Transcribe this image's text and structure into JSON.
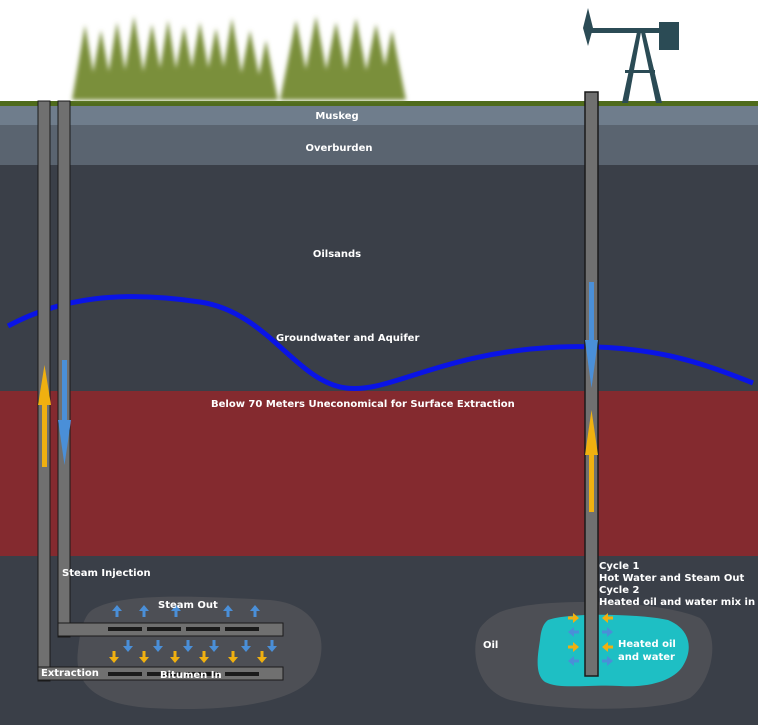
{
  "labels": {
    "muskeg": "Muskeg",
    "overburden": "Overburden",
    "oilsands": "Oilsands",
    "groundwater": "Groundwater and Aquifer",
    "below70": "Below 70 Meters Uneconomical for Surface Extraction",
    "steam_injection": "Steam Injection",
    "steam_out": "Steam Out",
    "extraction": "Extraction",
    "bitumen_in": "Bitumen In",
    "oil": "Oil",
    "heated_oil_line1": "Heated oil",
    "heated_oil_line2": "and water",
    "cycle1": "Cycle 1",
    "cycle1_desc": "Hot Water and Steam Out",
    "cycle2": "Cycle 2",
    "cycle2_desc": "Heated oil and water mix in"
  },
  "colors": {
    "sky": "#ffffff",
    "grass": "#4f6b1c",
    "muskeg": "#6f7d8c",
    "overburden": "#5a6470",
    "oilsands": "#3a3f48",
    "extraction_zone": "#842a2f",
    "deep_layer": "#3a3f48",
    "pocket": "#4d4f55",
    "pipe": "#707070",
    "pipe_edge": "#1a1a1a",
    "aquifer_line": "#0a14e6",
    "steam_arrow": "#4a8fd8",
    "oil_arrow": "#f0b010",
    "heated_pool": "#1ebfc4",
    "pumpjack": "#2b4b55",
    "tree": "#7a8f3a"
  },
  "icons": {
    "trees": "pine-tree-icon",
    "pumpjack": "pumpjack-icon",
    "arrow_up": "arrow-up-icon",
    "arrow_down": "arrow-down-icon",
    "arrow_right": "arrow-right-icon",
    "arrow_left": "arrow-left-icon"
  }
}
